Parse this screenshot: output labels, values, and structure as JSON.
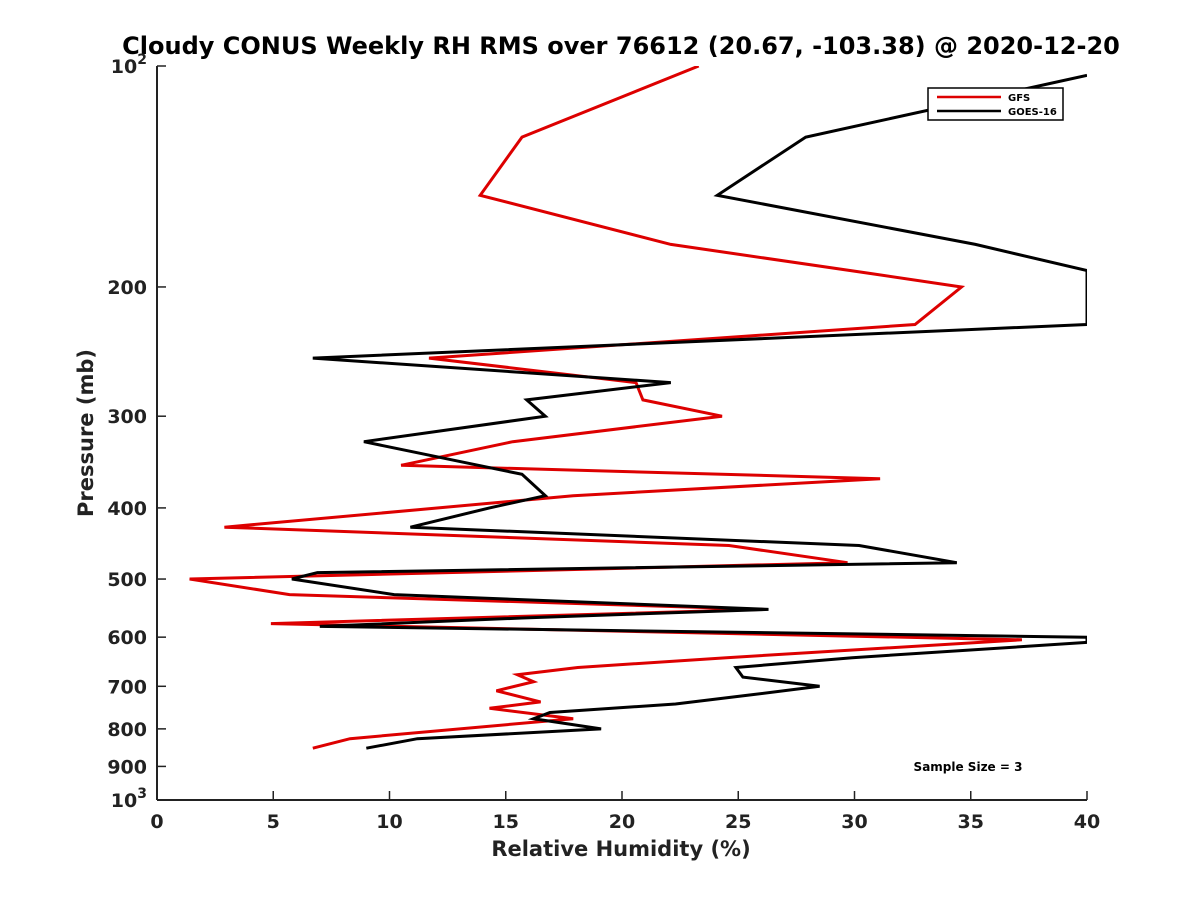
{
  "chart_data": {
    "type": "line",
    "title": "Cloudy CONUS Weekly RH RMS over 76612 (20.67, -103.38) @ 2020-12-20",
    "xlabel": "Relative Humidity (%)",
    "ylabel": "Pressure (mb)",
    "xlim": [
      0,
      40
    ],
    "ylim": [
      100,
      1000
    ],
    "yscale": "log",
    "y_reversed": true,
    "grid": false,
    "legend_position": "top-right",
    "x_ticks": [
      0,
      5,
      10,
      15,
      20,
      25,
      30,
      35,
      40
    ],
    "x_tick_labels": [
      "0",
      "5",
      "10",
      "15",
      "20",
      "25",
      "30",
      "35",
      "40"
    ],
    "y_ticks": [
      {
        "value": 100,
        "base": "10",
        "exp": "2"
      },
      {
        "value": 200,
        "label": "200"
      },
      {
        "value": 300,
        "label": "300"
      },
      {
        "value": 400,
        "label": "400"
      },
      {
        "value": 500,
        "label": "500"
      },
      {
        "value": 600,
        "label": "600"
      },
      {
        "value": 700,
        "label": "700"
      },
      {
        "value": 800,
        "label": "800"
      },
      {
        "value": 900,
        "label": "900"
      },
      {
        "value": 1000,
        "base": "10",
        "exp": "3"
      }
    ],
    "series": [
      {
        "name": "GFS",
        "color": "#dd0000",
        "points": [
          [
            23.3,
            100
          ],
          [
            15.7,
            125
          ],
          [
            13.9,
            150
          ],
          [
            22.1,
            175
          ],
          [
            30.8,
            192
          ],
          [
            34.6,
            200
          ],
          [
            32.6,
            225
          ],
          [
            11.7,
            250
          ],
          [
            20.6,
            270
          ],
          [
            20.9,
            285
          ],
          [
            24.3,
            300
          ],
          [
            15.3,
            325
          ],
          [
            10.5,
            350
          ],
          [
            31.1,
            365
          ],
          [
            17.9,
            385
          ],
          [
            2.9,
            425
          ],
          [
            24.6,
            450
          ],
          [
            29.7,
            475
          ],
          [
            1.4,
            500
          ],
          [
            5.7,
            525
          ],
          [
            26.1,
            550
          ],
          [
            4.9,
            575
          ],
          [
            37.2,
            605
          ],
          [
            24.5,
            640
          ],
          [
            18.1,
            660
          ],
          [
            15.5,
            675
          ],
          [
            16.2,
            690
          ],
          [
            14.6,
            710
          ],
          [
            16.5,
            735
          ],
          [
            14.3,
            750
          ],
          [
            17.9,
            775
          ],
          [
            8.3,
            825
          ],
          [
            6.7,
            850
          ]
        ]
      },
      {
        "name": "GOES-16",
        "color": "#000000",
        "points": [
          [
            40.0,
            103
          ],
          [
            27.9,
            125
          ],
          [
            24.1,
            150
          ],
          [
            35.2,
            175
          ],
          [
            40.0,
            190
          ],
          [
            40.0,
            225
          ],
          [
            6.7,
            250
          ],
          [
            22.1,
            270
          ],
          [
            15.9,
            285
          ],
          [
            16.7,
            300
          ],
          [
            8.9,
            325
          ],
          [
            15.7,
            360
          ],
          [
            16.7,
            385
          ],
          [
            14.3,
            400
          ],
          [
            10.9,
            425
          ],
          [
            30.2,
            450
          ],
          [
            34.4,
            475
          ],
          [
            6.9,
            490
          ],
          [
            5.8,
            500
          ],
          [
            10.2,
            525
          ],
          [
            26.3,
            550
          ],
          [
            15.7,
            565
          ],
          [
            7.0,
            580
          ],
          [
            40.0,
            600
          ],
          [
            40.0,
            610
          ],
          [
            29.9,
            640
          ],
          [
            24.9,
            660
          ],
          [
            25.2,
            680
          ],
          [
            28.5,
            700
          ],
          [
            25.4,
            720
          ],
          [
            22.3,
            740
          ],
          [
            16.9,
            760
          ],
          [
            16.2,
            775
          ],
          [
            19.1,
            800
          ],
          [
            11.2,
            825
          ],
          [
            9.0,
            850
          ]
        ]
      }
    ],
    "annotations": [
      {
        "text": "Sample Size = 3"
      }
    ]
  }
}
